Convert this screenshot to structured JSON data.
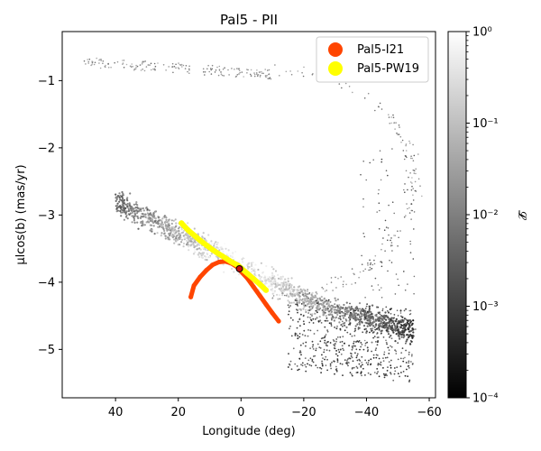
{
  "chart_data": {
    "type": "scatter",
    "title": "Pal5 - PII",
    "xlabel": "Longitude (deg)",
    "ylabel": "μlcos(b) (mas/yr)",
    "xlim": [
      57,
      -62
    ],
    "ylim": [
      -5.72,
      -0.27
    ],
    "xticks": [
      40,
      20,
      0,
      -20,
      -40,
      -60
    ],
    "xtick_labels": [
      "40",
      "20",
      "0",
      "−20",
      "−40",
      "−60"
    ],
    "yticks": [
      -1,
      -2,
      -3,
      -4,
      -5
    ],
    "ytick_labels": [
      "−1",
      "−2",
      "−3",
      "−4",
      "−5"
    ],
    "colorbar": {
      "label": "𝓛",
      "scale": "log",
      "range": [
        0.0001,
        1
      ],
      "tick_labels": [
        "10⁻⁴",
        "10⁻³",
        "10⁻²",
        "10⁻¹",
        "10⁰"
      ],
      "cmap": "greys_r"
    },
    "legend": {
      "position": "top-right",
      "entries": [
        {
          "name": "Pal5-I21",
          "color": "#ff4500"
        },
        {
          "name": "Pal5-PW19",
          "color": "#ffff00"
        }
      ]
    },
    "series": [
      {
        "name": "Pal5-I21",
        "color": "#ff4500",
        "x": [
          16,
          15,
          13,
          11,
          9,
          7,
          5,
          3,
          1,
          0,
          -2,
          -4,
          -6,
          -8,
          -10,
          -12
        ],
        "y": [
          -4.22,
          -4.05,
          -3.92,
          -3.82,
          -3.74,
          -3.7,
          -3.69,
          -3.72,
          -3.78,
          -3.84,
          -3.94,
          -4.07,
          -4.2,
          -4.33,
          -4.46,
          -4.58
        ]
      },
      {
        "name": "Pal5-PW19",
        "color": "#ffff00",
        "x": [
          19,
          17,
          15,
          13,
          11,
          9,
          7,
          5,
          3,
          1,
          0,
          -2,
          -4,
          -6,
          -8
        ],
        "y": [
          -3.12,
          -3.22,
          -3.3,
          -3.38,
          -3.45,
          -3.52,
          -3.58,
          -3.64,
          -3.7,
          -3.75,
          -3.79,
          -3.87,
          -3.95,
          -4.03,
          -4.12
        ]
      }
    ],
    "progenitor": {
      "x": 0.5,
      "y": -3.8
    }
  }
}
